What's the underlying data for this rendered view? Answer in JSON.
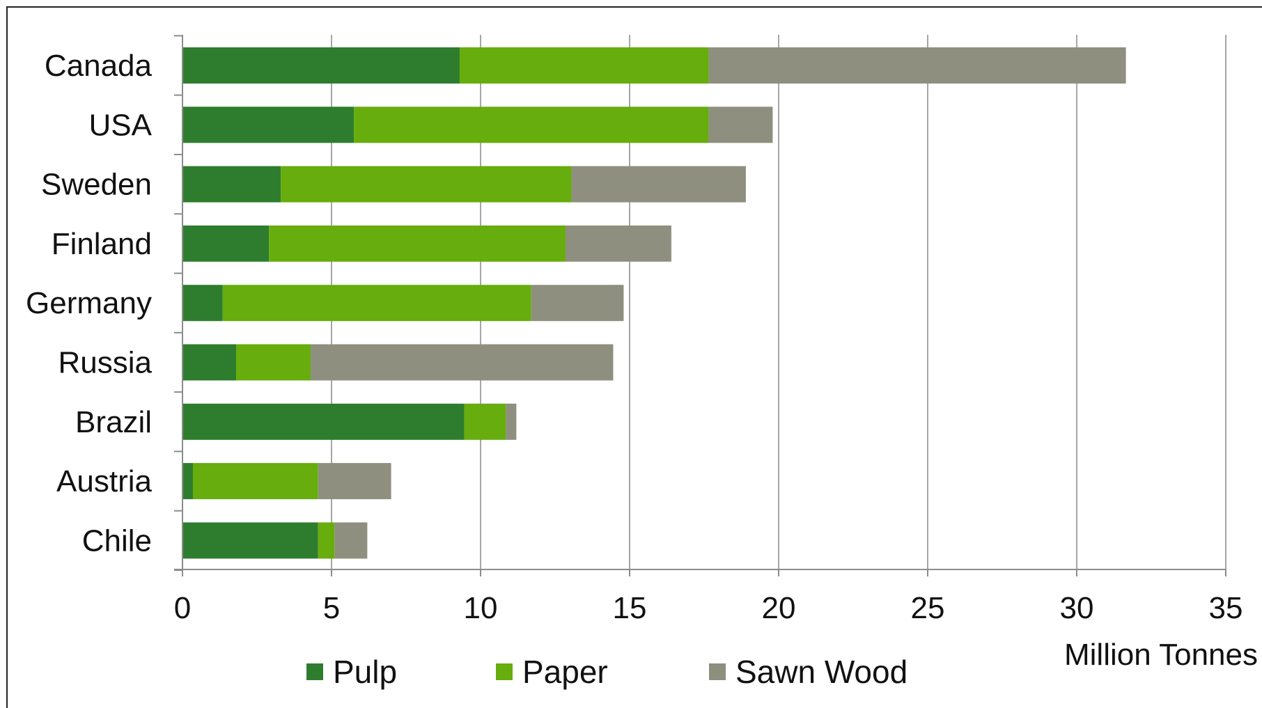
{
  "chart_data": {
    "type": "bar",
    "orientation": "horizontal",
    "stacked": true,
    "categories": [
      "Canada",
      "USA",
      "Sweden",
      "Finland",
      "Germany",
      "Russia",
      "Brazil",
      "Austria",
      "Chile"
    ],
    "series": [
      {
        "name": "Pulp",
        "color": "#2e7d2e",
        "values": [
          9.3,
          5.75,
          3.3,
          2.9,
          1.35,
          1.8,
          9.45,
          0.35,
          4.55
        ]
      },
      {
        "name": "Paper",
        "color": "#66ad0d",
        "values": [
          8.35,
          11.9,
          9.75,
          9.95,
          10.35,
          2.5,
          1.4,
          4.2,
          0.55
        ]
      },
      {
        "name": "Sawn Wood",
        "color": "#8f8f80",
        "values": [
          14.0,
          2.15,
          5.85,
          3.55,
          3.1,
          10.15,
          0.35,
          2.45,
          1.1
        ]
      }
    ],
    "xlim": [
      0,
      35
    ],
    "x_ticks": [
      "0",
      "5",
      "10",
      "15",
      "20",
      "25",
      "30",
      "35"
    ],
    "x_tick_values": [
      0,
      5,
      10,
      15,
      20,
      25,
      30,
      35
    ],
    "xlabel": "Million Tonnes",
    "grid": "vertical",
    "legend_position": "bottom"
  }
}
